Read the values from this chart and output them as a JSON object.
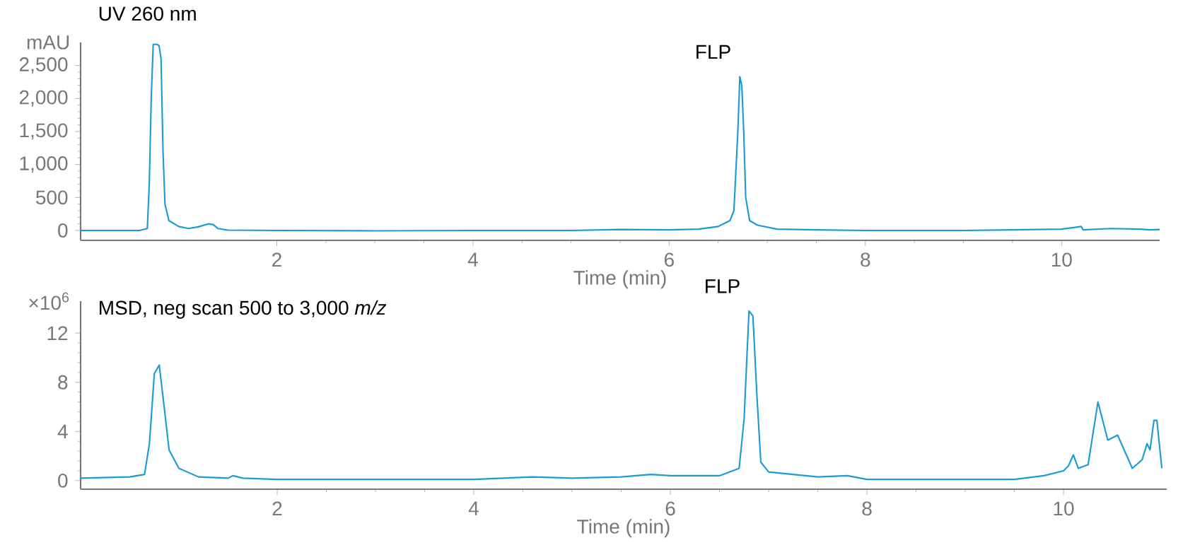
{
  "chart_data": [
    {
      "type": "line",
      "title": "UV 260 nm",
      "xlabel": "Time (min)",
      "ylabel": "mAU",
      "color": "#1a9ad6",
      "x": [
        0,
        0.6,
        0.68,
        0.7,
        0.72,
        0.74,
        0.78,
        0.8,
        0.82,
        0.84,
        0.86,
        0.9,
        1.0,
        1.1,
        1.2,
        1.3,
        1.35,
        1.4,
        1.5,
        2,
        3,
        4,
        5,
        5.5,
        6,
        6.3,
        6.5,
        6.62,
        6.66,
        6.7,
        6.72,
        6.74,
        6.76,
        6.78,
        6.82,
        6.9,
        7.1,
        7.5,
        8,
        9,
        9.5,
        10,
        10.2,
        10.22,
        10.5,
        10.8,
        10.9,
        11
      ],
      "values": [
        0,
        0,
        30,
        700,
        2000,
        2820,
        2820,
        2800,
        2600,
        1200,
        400,
        150,
        60,
        30,
        55,
        100,
        90,
        30,
        5,
        0,
        -5,
        0,
        0,
        15,
        10,
        20,
        60,
        150,
        300,
        1500,
        2330,
        2200,
        1500,
        500,
        150,
        80,
        20,
        10,
        0,
        0,
        10,
        20,
        60,
        10,
        30,
        20,
        10,
        15
      ],
      "xlim": [
        0,
        11
      ],
      "ylim": [
        -150,
        2850
      ],
      "xticks": [
        2,
        4,
        6,
        8,
        10
      ],
      "yticks": [
        0,
        500,
        {
          "value": 1000,
          "label": "1,000"
        },
        {
          "value": 1500,
          "label": "1,500"
        },
        {
          "value": 2000,
          "label": "2,000"
        },
        {
          "value": 2500,
          "label": "2,500"
        }
      ],
      "annotations": [
        {
          "text": "FLP",
          "x": 6.72,
          "y": 2330
        }
      ]
    },
    {
      "type": "line",
      "title": "MSD, neg scan 500 to 3,000 *m/z*",
      "xlabel": "Time (min)",
      "ylabel": "×10$^{6}$",
      "color": "#1a9ad6",
      "x": [
        0,
        0.5,
        0.65,
        0.7,
        0.75,
        0.8,
        0.85,
        0.9,
        1.0,
        1.2,
        1.5,
        1.55,
        1.65,
        2,
        4,
        4.6,
        5,
        5.5,
        5.8,
        6,
        6.5,
        6.7,
        6.75,
        6.8,
        6.84,
        6.88,
        6.92,
        7.0,
        7.5,
        7.8,
        8,
        9.5,
        9.8,
        10,
        10.05,
        10.1,
        10.15,
        10.25,
        10.35,
        10.45,
        10.55,
        10.7,
        10.8,
        10.85,
        10.88,
        10.92,
        10.95,
        11
      ],
      "values": [
        0.2,
        0.3,
        0.5,
        3,
        8.7,
        9.4,
        6,
        2.5,
        1.0,
        0.3,
        0.2,
        0.4,
        0.2,
        0.1,
        0.1,
        0.3,
        0.2,
        0.3,
        0.5,
        0.4,
        0.4,
        1.0,
        5,
        13.8,
        13.4,
        7,
        1.5,
        0.7,
        0.3,
        0.4,
        0.1,
        0.1,
        0.4,
        0.8,
        1.2,
        2.1,
        1.0,
        1.3,
        6.4,
        3.3,
        3.7,
        1.0,
        1.7,
        3.0,
        2.5,
        4.9,
        4.9,
        1.0
      ],
      "xlim": [
        0,
        11.05
      ],
      "ylim": [
        -0.7,
        14.6
      ],
      "xticks": [
        2,
        4,
        6,
        8,
        10
      ],
      "yticks": [
        0,
        4,
        8,
        12
      ],
      "annotations": [
        {
          "text": "FLP",
          "x": 6.8,
          "y": 13.8
        }
      ]
    }
  ]
}
